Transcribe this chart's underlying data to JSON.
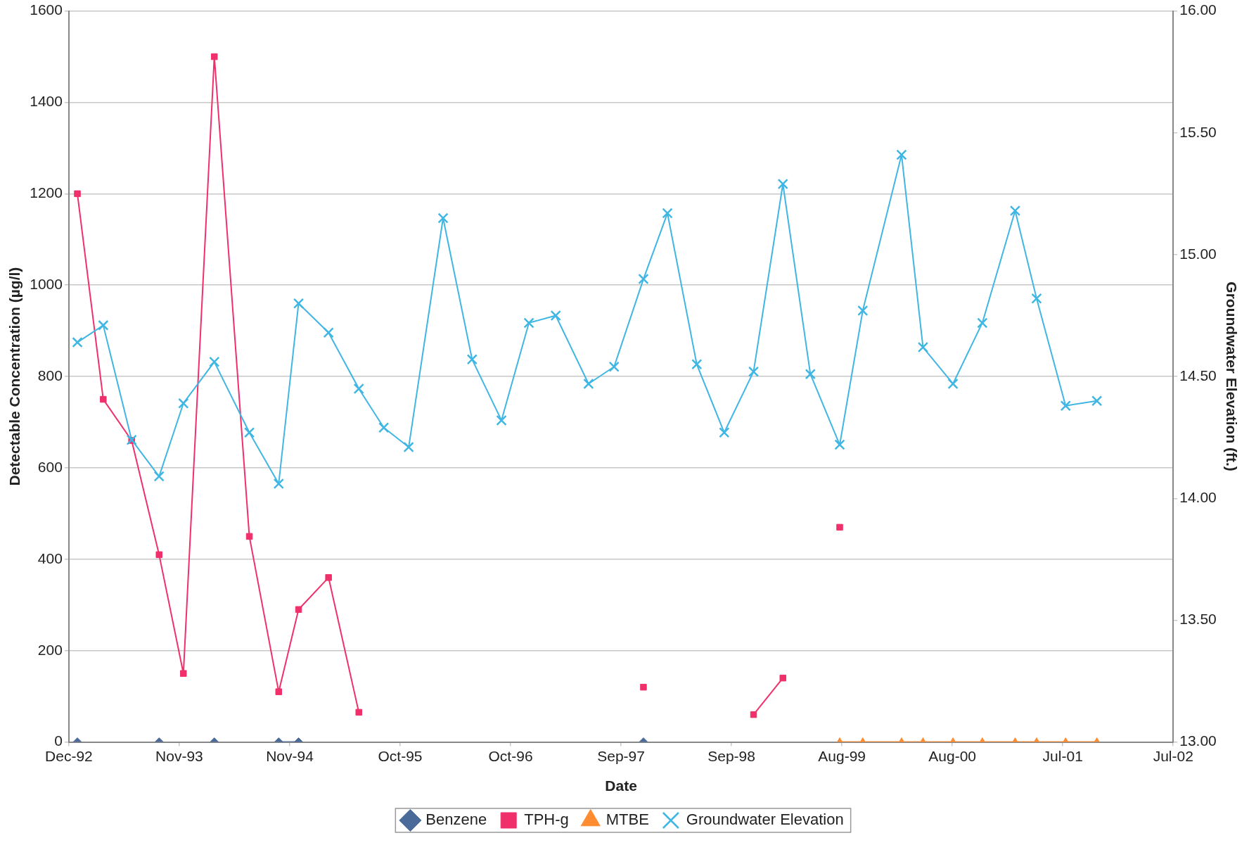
{
  "chart_data": {
    "type": "line",
    "xlabel": "Date",
    "ylabel": "Detectable Concentration (µg/l)",
    "y2label": "Groundwater Elevation (ft.)",
    "x": [
      "1993-01-11",
      "1993-04-03",
      "1993-07-02",
      "1993-09-27",
      "1993-12-13",
      "1994-03-21",
      "1994-07-10",
      "1994-10-11",
      "1994-12-13",
      "1995-03-18",
      "1995-06-22",
      "1995-09-09",
      "1995-11-27",
      "1996-03-15",
      "1996-06-15",
      "1996-09-16",
      "1996-12-12",
      "1997-03-07",
      "1997-06-19",
      "1997-09-08",
      "1997-12-10",
      "1998-02-24",
      "1998-05-28",
      "1998-08-23",
      "1998-11-24",
      "1999-02-25",
      "1999-05-23",
      "1999-08-24",
      "1999-11-05",
      "2000-03-07",
      "2000-05-14",
      "2000-08-17",
      "2000-11-18",
      "2001-03-02",
      "2001-05-09",
      "2001-08-09",
      "2001-11-16"
    ],
    "series": [
      {
        "name": "Benzene",
        "color": "#4a6a9a",
        "marker": "diamond",
        "values": [
          0,
          null,
          null,
          0,
          null,
          0,
          null,
          0,
          0,
          null,
          null,
          null,
          null,
          null,
          null,
          null,
          null,
          null,
          null,
          null,
          0,
          null,
          null,
          null,
          null,
          null,
          null,
          null,
          null,
          null,
          null,
          null,
          null,
          null,
          null,
          null,
          null
        ]
      },
      {
        "name": "TPH-g",
        "color": "#f0306a",
        "marker": "square",
        "values": [
          1200,
          750,
          660,
          410,
          150,
          1500,
          450,
          110,
          290,
          360,
          65,
          null,
          null,
          null,
          null,
          null,
          null,
          null,
          null,
          null,
          120,
          null,
          null,
          null,
          60,
          140,
          null,
          470,
          null,
          null,
          null,
          null,
          null,
          null,
          null,
          null,
          null
        ]
      },
      {
        "name": "MTBE",
        "color": "#ff8c30",
        "marker": "triangle",
        "values": [
          null,
          null,
          null,
          null,
          null,
          null,
          null,
          null,
          null,
          null,
          null,
          null,
          null,
          null,
          null,
          null,
          null,
          null,
          null,
          null,
          null,
          null,
          null,
          null,
          null,
          null,
          null,
          0,
          0,
          0,
          0,
          0,
          0,
          0,
          0,
          0,
          0
        ]
      },
      {
        "name": "Groundwater Elevation",
        "color": "#3fb6e3",
        "marker": "cross",
        "axis": "y2",
        "values": [
          14.64,
          14.71,
          14.24,
          14.09,
          14.39,
          14.56,
          14.27,
          14.06,
          14.8,
          14.68,
          14.45,
          14.29,
          14.21,
          15.15,
          14.57,
          14.32,
          14.72,
          14.75,
          14.47,
          14.54,
          14.9,
          15.17,
          14.55,
          14.27,
          14.52,
          15.29,
          14.51,
          14.22,
          14.77,
          15.41,
          14.62,
          14.47,
          14.72,
          15.18,
          14.82,
          14.38,
          14.4
        ]
      }
    ],
    "xlim": [
      "1992-12-15",
      "2002-07-16"
    ],
    "xticks": [
      {
        "value": "1992-12-15",
        "label": "Dec-92"
      },
      {
        "value": "1993-11-30",
        "label": "Nov-93"
      },
      {
        "value": "1994-11-15",
        "label": "Nov-94"
      },
      {
        "value": "1995-10-31",
        "label": "Oct-95"
      },
      {
        "value": "1996-10-15",
        "label": "Oct-96"
      },
      {
        "value": "1997-09-30",
        "label": "Sep-97"
      },
      {
        "value": "1998-09-15",
        "label": "Sep-98"
      },
      {
        "value": "1999-08-31",
        "label": "Aug-99"
      },
      {
        "value": "2000-08-15",
        "label": "Aug-00"
      },
      {
        "value": "2001-07-31",
        "label": "Jul-01"
      },
      {
        "value": "2002-07-16",
        "label": "Jul-02"
      }
    ],
    "ylim": [
      0,
      1600
    ],
    "yticks": [
      0,
      200,
      400,
      600,
      800,
      1000,
      1200,
      1400,
      1600
    ],
    "y2lim": [
      13,
      16
    ],
    "y2ticks": [
      {
        "value": 13,
        "label": "13.00"
      },
      {
        "value": 13.5,
        "label": "13.50"
      },
      {
        "value": 14,
        "label": "14.00"
      },
      {
        "value": 14.5,
        "label": "14.50"
      },
      {
        "value": 15,
        "label": "15.00"
      },
      {
        "value": 15.5,
        "label": "15.50"
      },
      {
        "value": 16,
        "label": "16.00"
      }
    ],
    "grid": "y",
    "legend": "bottom"
  }
}
